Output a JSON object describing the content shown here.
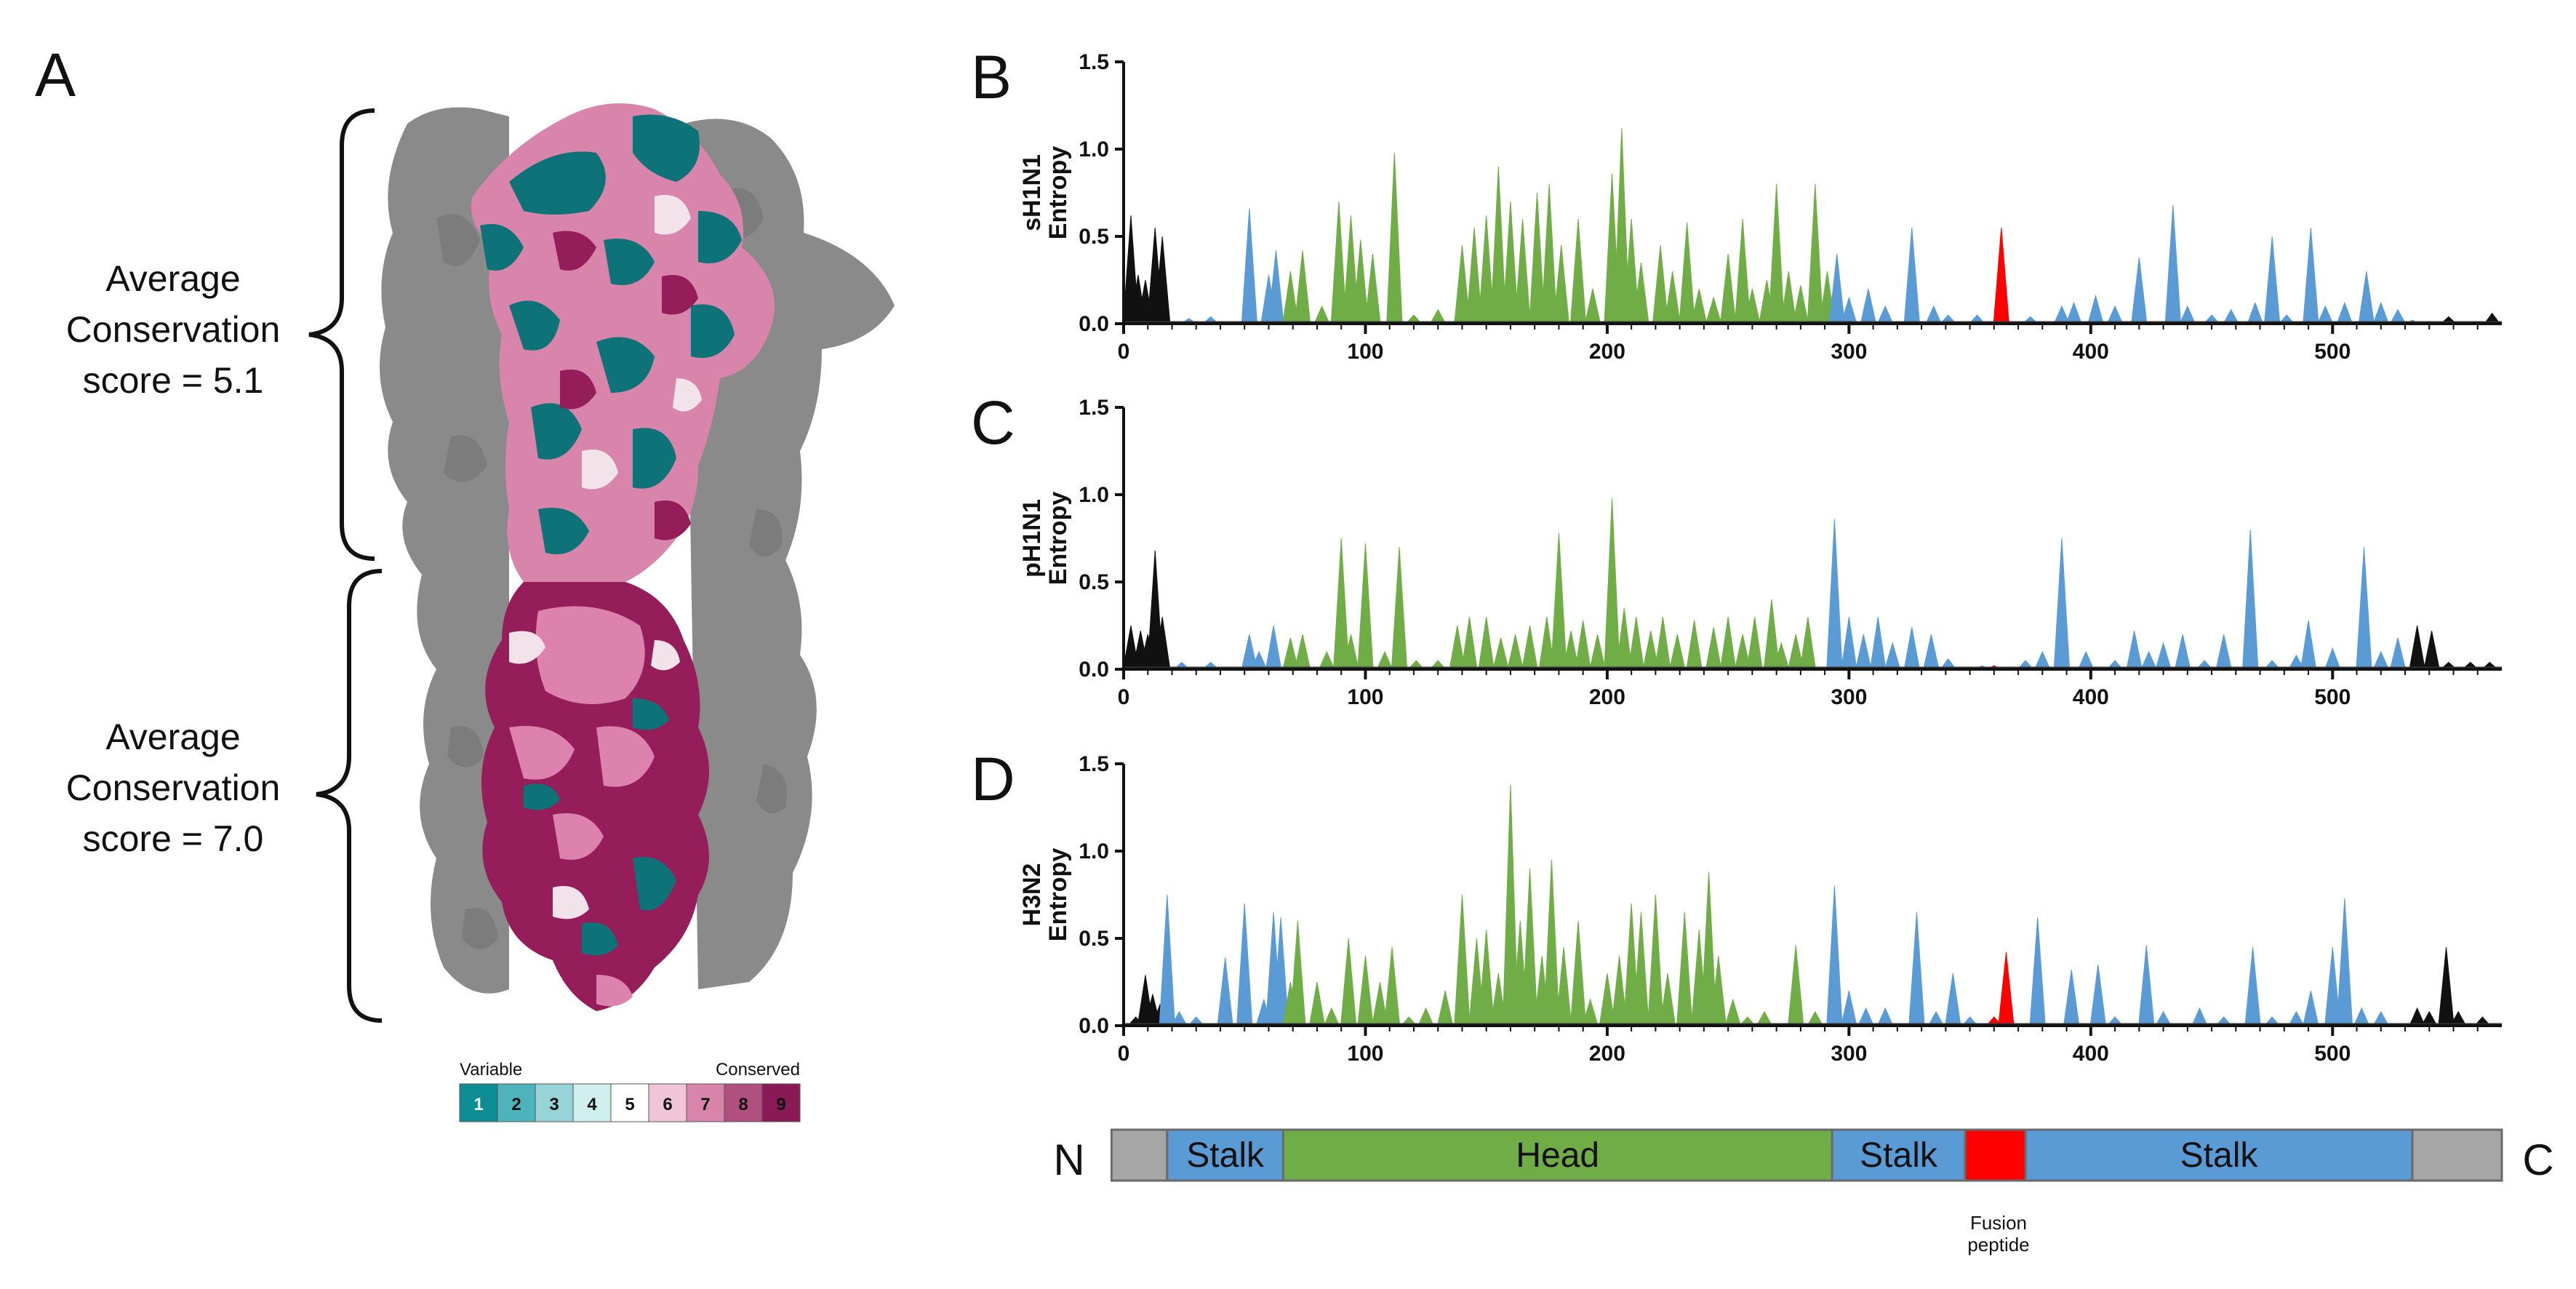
{
  "panel_a": {
    "letter": "A",
    "top_score": [
      "Average",
      "Conservation",
      "score = 5.1"
    ],
    "bottom_score": [
      "Average",
      "Conservation",
      "score = 7.0"
    ],
    "legend": {
      "left_label": "Variable",
      "right_label": "Conserved",
      "steps": [
        "1",
        "2",
        "3",
        "4",
        "5",
        "6",
        "7",
        "8",
        "9"
      ],
      "colors": [
        "#0e8c93",
        "#4fb3bb",
        "#97d4d8",
        "#cfeeee",
        "#ffffff",
        "#f0c5d8",
        "#d884ab",
        "#b0507f",
        "#8a1a55"
      ]
    },
    "colors": {
      "protomer_gray": "#8a8a8a",
      "teal": "#0d7378",
      "magenta": "#951e5a",
      "pink": "#dc82ad",
      "light": "#f2e3ea"
    }
  },
  "chart_data": [
    {
      "type": "area",
      "letter": "B",
      "ylabel": [
        "sH1N1",
        "Entropy"
      ],
      "ylim": [
        0,
        1.5
      ],
      "yticks": [
        "0.0",
        "0.5",
        "1.0",
        "1.5"
      ],
      "xlim": [
        0,
        570
      ],
      "xticks": [
        "0",
        "100",
        "200",
        "300",
        "400",
        "500"
      ],
      "region_colors": {
        "terminal": "#111111",
        "stalk": "#5b9bd5",
        "head": "#70ad47",
        "fusion": "#ff0000"
      },
      "peaks": [
        [
          3,
          0.62
        ],
        [
          6,
          0.28
        ],
        [
          9,
          0.25
        ],
        [
          13,
          0.55
        ],
        [
          16,
          0.5
        ],
        [
          27,
          0.03
        ],
        [
          36,
          0.04
        ],
        [
          52,
          0.66
        ],
        [
          60,
          0.28
        ],
        [
          63,
          0.42
        ],
        [
          69,
          0.3
        ],
        [
          74,
          0.42
        ],
        [
          82,
          0.1
        ],
        [
          89,
          0.7
        ],
        [
          94,
          0.62
        ],
        [
          98,
          0.48
        ],
        [
          103,
          0.4
        ],
        [
          112,
          0.98
        ],
        [
          120,
          0.05
        ],
        [
          130,
          0.08
        ],
        [
          140,
          0.45
        ],
        [
          145,
          0.55
        ],
        [
          150,
          0.62
        ],
        [
          155,
          0.9
        ],
        [
          160,
          0.7
        ],
        [
          165,
          0.6
        ],
        [
          171,
          0.75
        ],
        [
          176,
          0.8
        ],
        [
          181,
          0.45
        ],
        [
          188,
          0.6
        ],
        [
          194,
          0.2
        ],
        [
          202,
          0.86
        ],
        [
          206,
          1.12
        ],
        [
          210,
          0.6
        ],
        [
          214,
          0.35
        ],
        [
          222,
          0.45
        ],
        [
          227,
          0.3
        ],
        [
          233,
          0.58
        ],
        [
          238,
          0.2
        ],
        [
          244,
          0.15
        ],
        [
          250,
          0.4
        ],
        [
          256,
          0.6
        ],
        [
          260,
          0.2
        ],
        [
          266,
          0.25
        ],
        [
          270,
          0.8
        ],
        [
          275,
          0.3
        ],
        [
          280,
          0.22
        ],
        [
          286,
          0.8
        ],
        [
          291,
          0.3
        ],
        [
          295,
          0.4
        ],
        [
          300,
          0.15
        ],
        [
          308,
          0.2
        ],
        [
          315,
          0.1
        ],
        [
          326,
          0.55
        ],
        [
          335,
          0.1
        ],
        [
          341,
          0.05
        ],
        [
          353,
          0.05
        ],
        [
          363,
          0.55
        ],
        [
          375,
          0.04
        ],
        [
          388,
          0.1
        ],
        [
          393,
          0.12
        ],
        [
          402,
          0.16
        ],
        [
          410,
          0.1
        ],
        [
          420,
          0.38
        ],
        [
          434,
          0.68
        ],
        [
          440,
          0.1
        ],
        [
          450,
          0.05
        ],
        [
          458,
          0.08
        ],
        [
          468,
          0.12
        ],
        [
          475,
          0.5
        ],
        [
          481,
          0.05
        ],
        [
          491,
          0.55
        ],
        [
          497,
          0.1
        ],
        [
          505,
          0.12
        ],
        [
          514,
          0.3
        ],
        [
          520,
          0.12
        ],
        [
          527,
          0.08
        ],
        [
          533,
          0.02
        ],
        [
          548,
          0.04
        ],
        [
          566,
          0.06
        ]
      ]
    },
    {
      "type": "area",
      "letter": "C",
      "ylabel": [
        "pH1N1",
        "Entropy"
      ],
      "ylim": [
        0,
        1.5
      ],
      "yticks": [
        "0.0",
        "0.5",
        "1.0",
        "1.5"
      ],
      "xlim": [
        0,
        570
      ],
      "xticks": [
        "0",
        "100",
        "200",
        "300",
        "400",
        "500"
      ],
      "region_colors": {
        "terminal": "#111111",
        "stalk": "#5b9bd5",
        "head": "#70ad47",
        "fusion": "#ff0000"
      },
      "peaks": [
        [
          3,
          0.25
        ],
        [
          7,
          0.22
        ],
        [
          10,
          0.2
        ],
        [
          13,
          0.68
        ],
        [
          16,
          0.3
        ],
        [
          24,
          0.04
        ],
        [
          36,
          0.04
        ],
        [
          52,
          0.2
        ],
        [
          56,
          0.1
        ],
        [
          62,
          0.25
        ],
        [
          69,
          0.18
        ],
        [
          74,
          0.2
        ],
        [
          84,
          0.1
        ],
        [
          90,
          0.75
        ],
        [
          94,
          0.2
        ],
        [
          100,
          0.72
        ],
        [
          108,
          0.1
        ],
        [
          114,
          0.7
        ],
        [
          121,
          0.05
        ],
        [
          130,
          0.05
        ],
        [
          138,
          0.25
        ],
        [
          143,
          0.3
        ],
        [
          150,
          0.3
        ],
        [
          156,
          0.18
        ],
        [
          162,
          0.2
        ],
        [
          168,
          0.25
        ],
        [
          175,
          0.3
        ],
        [
          180,
          0.78
        ],
        [
          185,
          0.22
        ],
        [
          190,
          0.28
        ],
        [
          196,
          0.2
        ],
        [
          202,
          0.98
        ],
        [
          207,
          0.35
        ],
        [
          212,
          0.3
        ],
        [
          218,
          0.22
        ],
        [
          223,
          0.3
        ],
        [
          229,
          0.2
        ],
        [
          236,
          0.28
        ],
        [
          244,
          0.24
        ],
        [
          250,
          0.3
        ],
        [
          256,
          0.2
        ],
        [
          261,
          0.3
        ],
        [
          268,
          0.4
        ],
        [
          272,
          0.15
        ],
        [
          278,
          0.2
        ],
        [
          283,
          0.3
        ],
        [
          294,
          0.86
        ],
        [
          300,
          0.3
        ],
        [
          306,
          0.2
        ],
        [
          312,
          0.3
        ],
        [
          318,
          0.15
        ],
        [
          326,
          0.24
        ],
        [
          334,
          0.2
        ],
        [
          341,
          0.06
        ],
        [
          355,
          0.02
        ],
        [
          360,
          0.02
        ],
        [
          373,
          0.05
        ],
        [
          380,
          0.1
        ],
        [
          388,
          0.75
        ],
        [
          398,
          0.1
        ],
        [
          410,
          0.05
        ],
        [
          418,
          0.22
        ],
        [
          424,
          0.1
        ],
        [
          430,
          0.15
        ],
        [
          438,
          0.2
        ],
        [
          447,
          0.05
        ],
        [
          455,
          0.2
        ],
        [
          466,
          0.8
        ],
        [
          475,
          0.05
        ],
        [
          485,
          0.08
        ],
        [
          490,
          0.28
        ],
        [
          500,
          0.12
        ],
        [
          513,
          0.7
        ],
        [
          520,
          0.1
        ],
        [
          527,
          0.18
        ],
        [
          535,
          0.25
        ],
        [
          541,
          0.22
        ],
        [
          548,
          0.04
        ],
        [
          557,
          0.04
        ],
        [
          565,
          0.04
        ]
      ]
    },
    {
      "type": "area",
      "letter": "D",
      "ylabel": [
        "H3N2",
        "Entropy"
      ],
      "ylim": [
        0,
        1.5
      ],
      "yticks": [
        "0.0",
        "0.5",
        "1.0",
        "1.5"
      ],
      "xlim": [
        0,
        570
      ],
      "xticks": [
        "0",
        "100",
        "200",
        "300",
        "400",
        "500"
      ],
      "region_colors": {
        "terminal": "#111111",
        "stalk": "#5b9bd5",
        "head": "#70ad47",
        "fusion": "#ff0000"
      },
      "peaks": [
        [
          5,
          0.05
        ],
        [
          9,
          0.29
        ],
        [
          12,
          0.18
        ],
        [
          15,
          0.12
        ],
        [
          18,
          0.75
        ],
        [
          23,
          0.08
        ],
        [
          30,
          0.05
        ],
        [
          42,
          0.39
        ],
        [
          50,
          0.7
        ],
        [
          58,
          0.15
        ],
        [
          62,
          0.65
        ],
        [
          65,
          0.62
        ],
        [
          69,
          0.25
        ],
        [
          72,
          0.6
        ],
        [
          80,
          0.25
        ],
        [
          86,
          0.1
        ],
        [
          93,
          0.5
        ],
        [
          100,
          0.4
        ],
        [
          106,
          0.25
        ],
        [
          111,
          0.45
        ],
        [
          118,
          0.05
        ],
        [
          125,
          0.1
        ],
        [
          133,
          0.2
        ],
        [
          140,
          0.75
        ],
        [
          146,
          0.5
        ],
        [
          150,
          0.55
        ],
        [
          155,
          0.3
        ],
        [
          160,
          1.38
        ],
        [
          164,
          0.6
        ],
        [
          168,
          0.9
        ],
        [
          173,
          0.4
        ],
        [
          177,
          0.95
        ],
        [
          182,
          0.45
        ],
        [
          188,
          0.6
        ],
        [
          193,
          0.15
        ],
        [
          200,
          0.3
        ],
        [
          205,
          0.4
        ],
        [
          210,
          0.7
        ],
        [
          214,
          0.65
        ],
        [
          220,
          0.75
        ],
        [
          225,
          0.3
        ],
        [
          232,
          0.65
        ],
        [
          238,
          0.55
        ],
        [
          242,
          0.88
        ],
        [
          246,
          0.4
        ],
        [
          252,
          0.15
        ],
        [
          258,
          0.05
        ],
        [
          265,
          0.08
        ],
        [
          278,
          0.46
        ],
        [
          286,
          0.08
        ],
        [
          294,
          0.8
        ],
        [
          300,
          0.2
        ],
        [
          307,
          0.1
        ],
        [
          315,
          0.1
        ],
        [
          328,
          0.65
        ],
        [
          336,
          0.08
        ],
        [
          343,
          0.3
        ],
        [
          350,
          0.05
        ],
        [
          360,
          0.05
        ],
        [
          365,
          0.42
        ],
        [
          378,
          0.62
        ],
        [
          392,
          0.32
        ],
        [
          403,
          0.35
        ],
        [
          410,
          0.05
        ],
        [
          423,
          0.46
        ],
        [
          430,
          0.08
        ],
        [
          445,
          0.1
        ],
        [
          455,
          0.05
        ],
        [
          467,
          0.45
        ],
        [
          475,
          0.05
        ],
        [
          485,
          0.08
        ],
        [
          491,
          0.2
        ],
        [
          500,
          0.45
        ],
        [
          505,
          0.73
        ],
        [
          512,
          0.1
        ],
        [
          520,
          0.08
        ],
        [
          535,
          0.1
        ],
        [
          540,
          0.08
        ],
        [
          547,
          0.45
        ],
        [
          552,
          0.08
        ],
        [
          562,
          0.05
        ]
      ]
    }
  ],
  "domain_bar": {
    "n_label": "N",
    "c_label": "C",
    "segments": [
      {
        "start": -5,
        "end": 18,
        "label": "",
        "color": "#a6a6a6"
      },
      {
        "start": 18,
        "end": 66,
        "label": "Stalk",
        "color": "#5b9bd5"
      },
      {
        "start": 66,
        "end": 293,
        "label": "Head",
        "color": "#70ad47"
      },
      {
        "start": 293,
        "end": 348,
        "label": "Stalk",
        "color": "#5b9bd5"
      },
      {
        "start": 348,
        "end": 373,
        "label": "",
        "color": "#ff0000"
      },
      {
        "start": 373,
        "end": 533,
        "label": "Stalk",
        "color": "#5b9bd5"
      },
      {
        "start": 533,
        "end": 570,
        "label": "",
        "color": "#a6a6a6"
      }
    ],
    "fusion_label": [
      "Fusion",
      "peptide"
    ]
  }
}
